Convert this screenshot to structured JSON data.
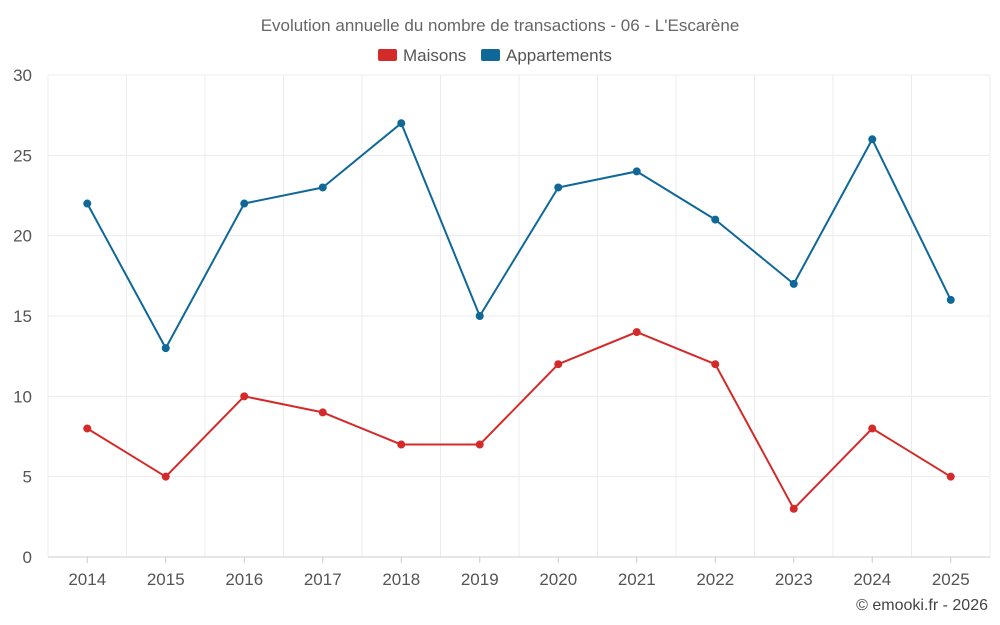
{
  "chart_data": {
    "type": "line",
    "title": "Evolution annuelle du nombre de transactions - 06 - L'Escarène",
    "xlabel": "",
    "ylabel": "",
    "categories": [
      "2014",
      "2015",
      "2016",
      "2017",
      "2018",
      "2019",
      "2020",
      "2021",
      "2022",
      "2023",
      "2024",
      "2025"
    ],
    "ylim": [
      0,
      30
    ],
    "yticks": [
      0,
      5,
      10,
      15,
      20,
      25,
      30
    ],
    "grid": true,
    "legend_position": "top-center",
    "series": [
      {
        "name": "Maisons",
        "color": "#d42a2a",
        "values": [
          8,
          5,
          10,
          9,
          7,
          7,
          12,
          14,
          12,
          3,
          8,
          5
        ]
      },
      {
        "name": "Appartements",
        "color": "#0f6898",
        "values": [
          22,
          13,
          22,
          23,
          27,
          15,
          23,
          24,
          21,
          17,
          26,
          16
        ]
      }
    ]
  },
  "footer": {
    "credit": "© emooki.fr - 2026"
  }
}
